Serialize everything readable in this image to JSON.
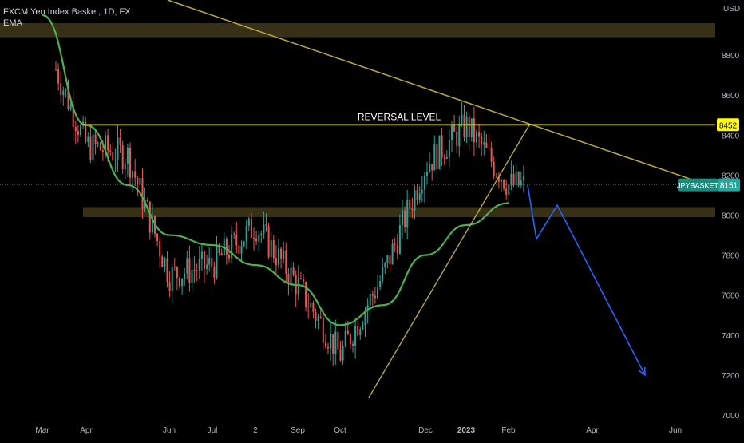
{
  "legend": {
    "symbol_title": "FXCM Yen Index Basket, 1D, FX",
    "indicator": "EMA"
  },
  "chart_data": {
    "type": "candlestick",
    "currency_label": "USD",
    "ylim": [
      7000,
      9000
    ],
    "y_ticks": [
      7000,
      7200,
      7400,
      7600,
      7800,
      8000,
      8200,
      8400,
      8600,
      8800
    ],
    "x_tick_labels": [
      "Mar",
      "Apr",
      "Jun",
      "Jul",
      "2",
      "Sep",
      "Oct",
      "Dec",
      "2023",
      "Feb",
      "Apr",
      "Jun"
    ],
    "price_series": [
      {
        "date": "Mar",
        "value": 8900
      },
      {
        "date": "Apr",
        "value": 8350
      },
      {
        "date": "May",
        "value": 8300
      },
      {
        "date": "Jun",
        "value": 7700
      },
      {
        "date": "Jul",
        "value": 7750
      },
      {
        "date": "Aug",
        "value": 7950
      },
      {
        "date": "Sep",
        "value": 7650
      },
      {
        "date": "Oct",
        "value": 7300
      },
      {
        "date": "Nov",
        "value": 7700
      },
      {
        "date": "Dec",
        "value": 8250
      },
      {
        "date": "2023",
        "value": 8450
      },
      {
        "date": "Feb",
        "value": 8151
      }
    ],
    "ema_series": [
      {
        "date": "Mar",
        "value": 9000
      },
      {
        "date": "Apr",
        "value": 8450
      },
      {
        "date": "May",
        "value": 8150
      },
      {
        "date": "Jun",
        "value": 7900
      },
      {
        "date": "Jul",
        "value": 7850
      },
      {
        "date": "Aug",
        "value": 7750
      },
      {
        "date": "Sep",
        "value": 7650
      },
      {
        "date": "Oct",
        "value": 7450
      },
      {
        "date": "Nov",
        "value": 7550
      },
      {
        "date": "Dec",
        "value": 7800
      },
      {
        "date": "2023",
        "value": 7950
      },
      {
        "date": "Feb",
        "value": 8060
      }
    ],
    "annotations": {
      "reversal_level": {
        "label": "REVERSAL LEVEL",
        "value": 8452
      },
      "current_price": {
        "label": "JPYBASKET",
        "value": 8151
      },
      "support_zone": {
        "from": 7990,
        "to": 8040
      },
      "resistance_zone": {
        "from": 8890,
        "to": 8960
      }
    },
    "projection_path": [
      {
        "date": "Feb",
        "value": 8150
      },
      {
        "date": "Mar",
        "value": 7880
      },
      {
        "date": "Mar",
        "value": 8050
      },
      {
        "date": "May",
        "value": 7200
      }
    ],
    "grid": false
  }
}
